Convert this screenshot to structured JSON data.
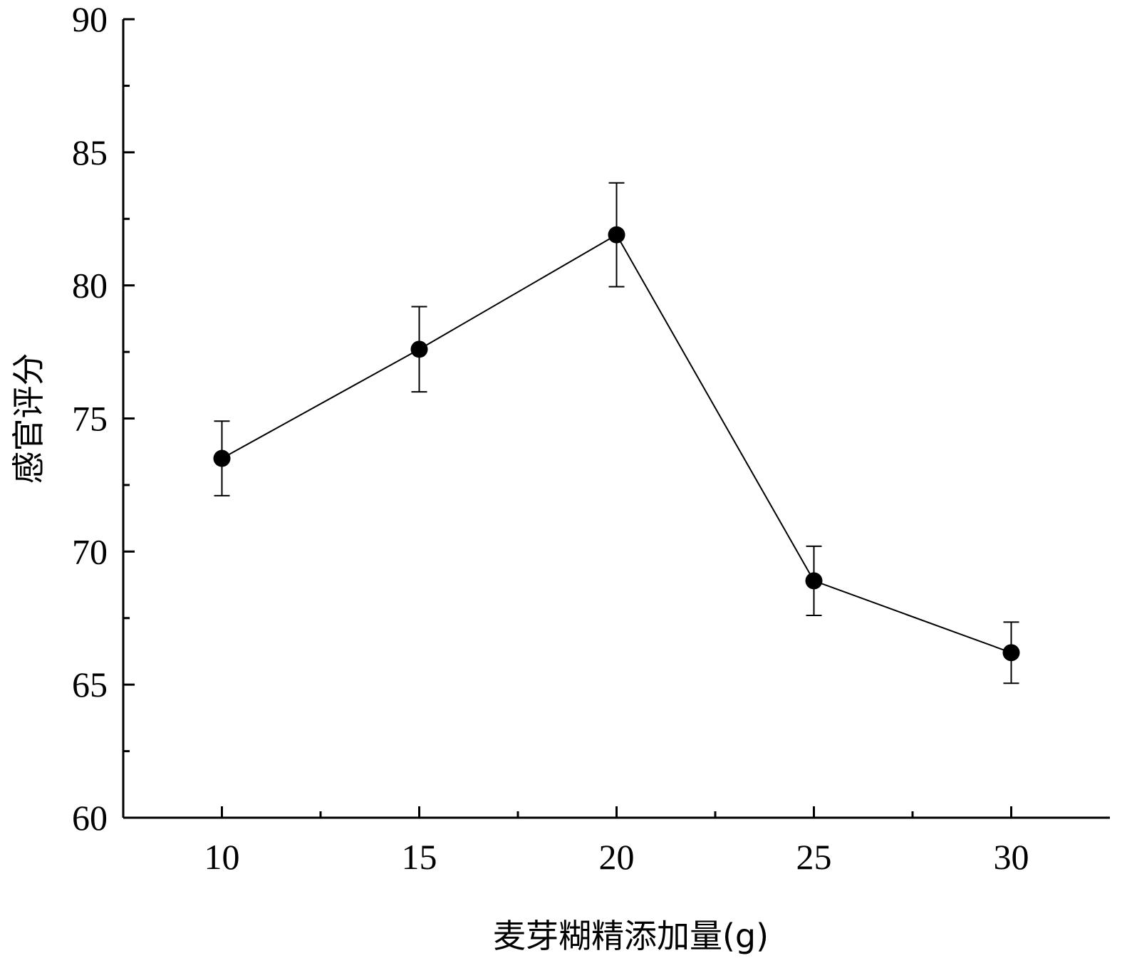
{
  "chart_data": {
    "type": "line",
    "xlabel": "麦芽糊精添加量(g)",
    "ylabel": "感官评分",
    "xlim": [
      7.5,
      32.5
    ],
    "ylim": [
      60,
      90
    ],
    "x_ticks": [
      10,
      15,
      20,
      25,
      30
    ],
    "y_ticks": [
      60,
      65,
      70,
      75,
      80,
      85,
      90
    ],
    "x_tick_labels": [
      "10",
      "15",
      "20",
      "25",
      "30"
    ],
    "y_tick_labels": [
      "60",
      "65",
      "70",
      "75",
      "80",
      "85",
      "90"
    ],
    "grid": false,
    "series": [
      {
        "x": [
          10,
          15,
          20,
          25,
          30
        ],
        "y": [
          73.5,
          77.6,
          81.9,
          68.9,
          66.2
        ],
        "error": [
          1.4,
          1.6,
          1.95,
          1.3,
          1.15
        ],
        "color": "#000000",
        "marker": "filled-circle"
      }
    ]
  }
}
